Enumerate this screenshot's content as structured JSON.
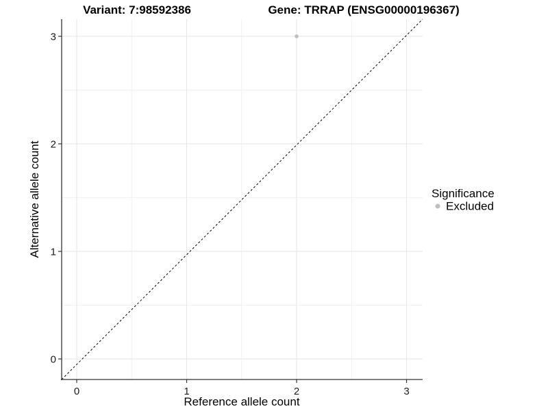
{
  "chart_data": {
    "type": "scatter",
    "title_left": "Variant: 7:98592386",
    "title_right": "Gene: TRRAP (ENSG00000196367)",
    "xlabel": "Reference allele count",
    "ylabel": "Alternative allele count",
    "xlim": [
      -0.15,
      3.15
    ],
    "ylim": [
      -0.15,
      3.15
    ],
    "x_ticks": [
      0,
      1,
      2,
      3
    ],
    "y_ticks": [
      0,
      1,
      2,
      3
    ],
    "minor_gridlines": [
      0.5,
      1.5,
      2.5
    ],
    "grid": true,
    "legend_position": "right",
    "identity_line": {
      "equation": "y = x",
      "style": "dashed",
      "color": "#000000"
    },
    "series": [
      {
        "name": "Excluded",
        "color": "#bebebe",
        "points": [
          {
            "x": 2,
            "y": 3
          }
        ]
      }
    ],
    "legend": {
      "title": "Significance",
      "items": [
        {
          "label": "Excluded",
          "color": "#bebebe"
        }
      ]
    },
    "colors": {
      "background": "#ffffff",
      "grid_major": "#e6e6e6",
      "grid_minor": "#f1f1f1",
      "axis_line": "#333333",
      "tick_mark": "#333333",
      "point": "#bebebe",
      "text": "#000000"
    }
  }
}
